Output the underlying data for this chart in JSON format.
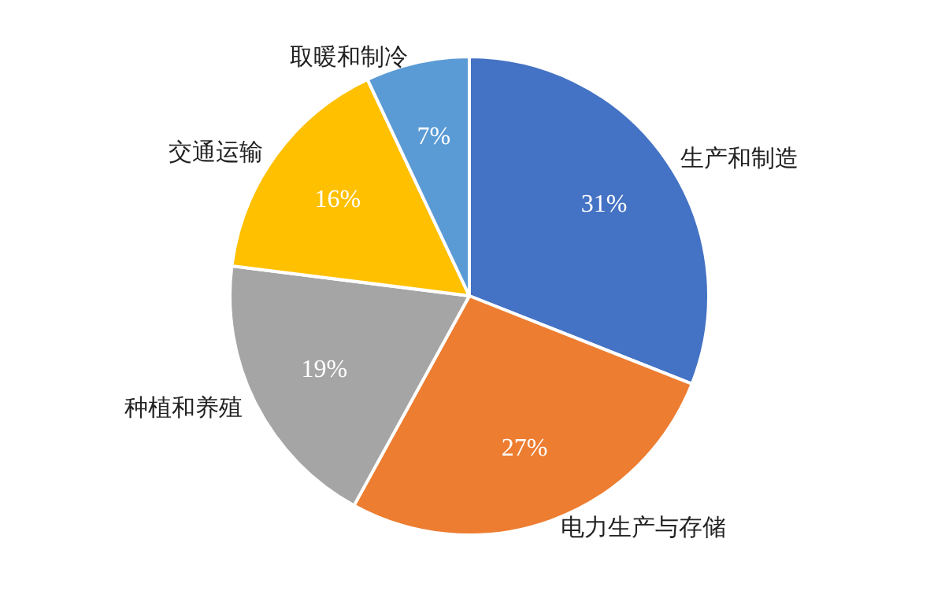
{
  "chart_data": {
    "type": "pie",
    "categories": [
      "生产和制造",
      "电力生产与存储",
      "种植和养殖",
      "交通运输",
      "取暖和制冷"
    ],
    "values": [
      31,
      27,
      19,
      16,
      7
    ],
    "colors": [
      "#4472c4",
      "#ed7d31",
      "#a5a5a5",
      "#ffc000",
      "#5b9bd5"
    ],
    "value_labels": [
      "31%",
      "27%",
      "19%",
      "16%",
      "7%"
    ]
  }
}
